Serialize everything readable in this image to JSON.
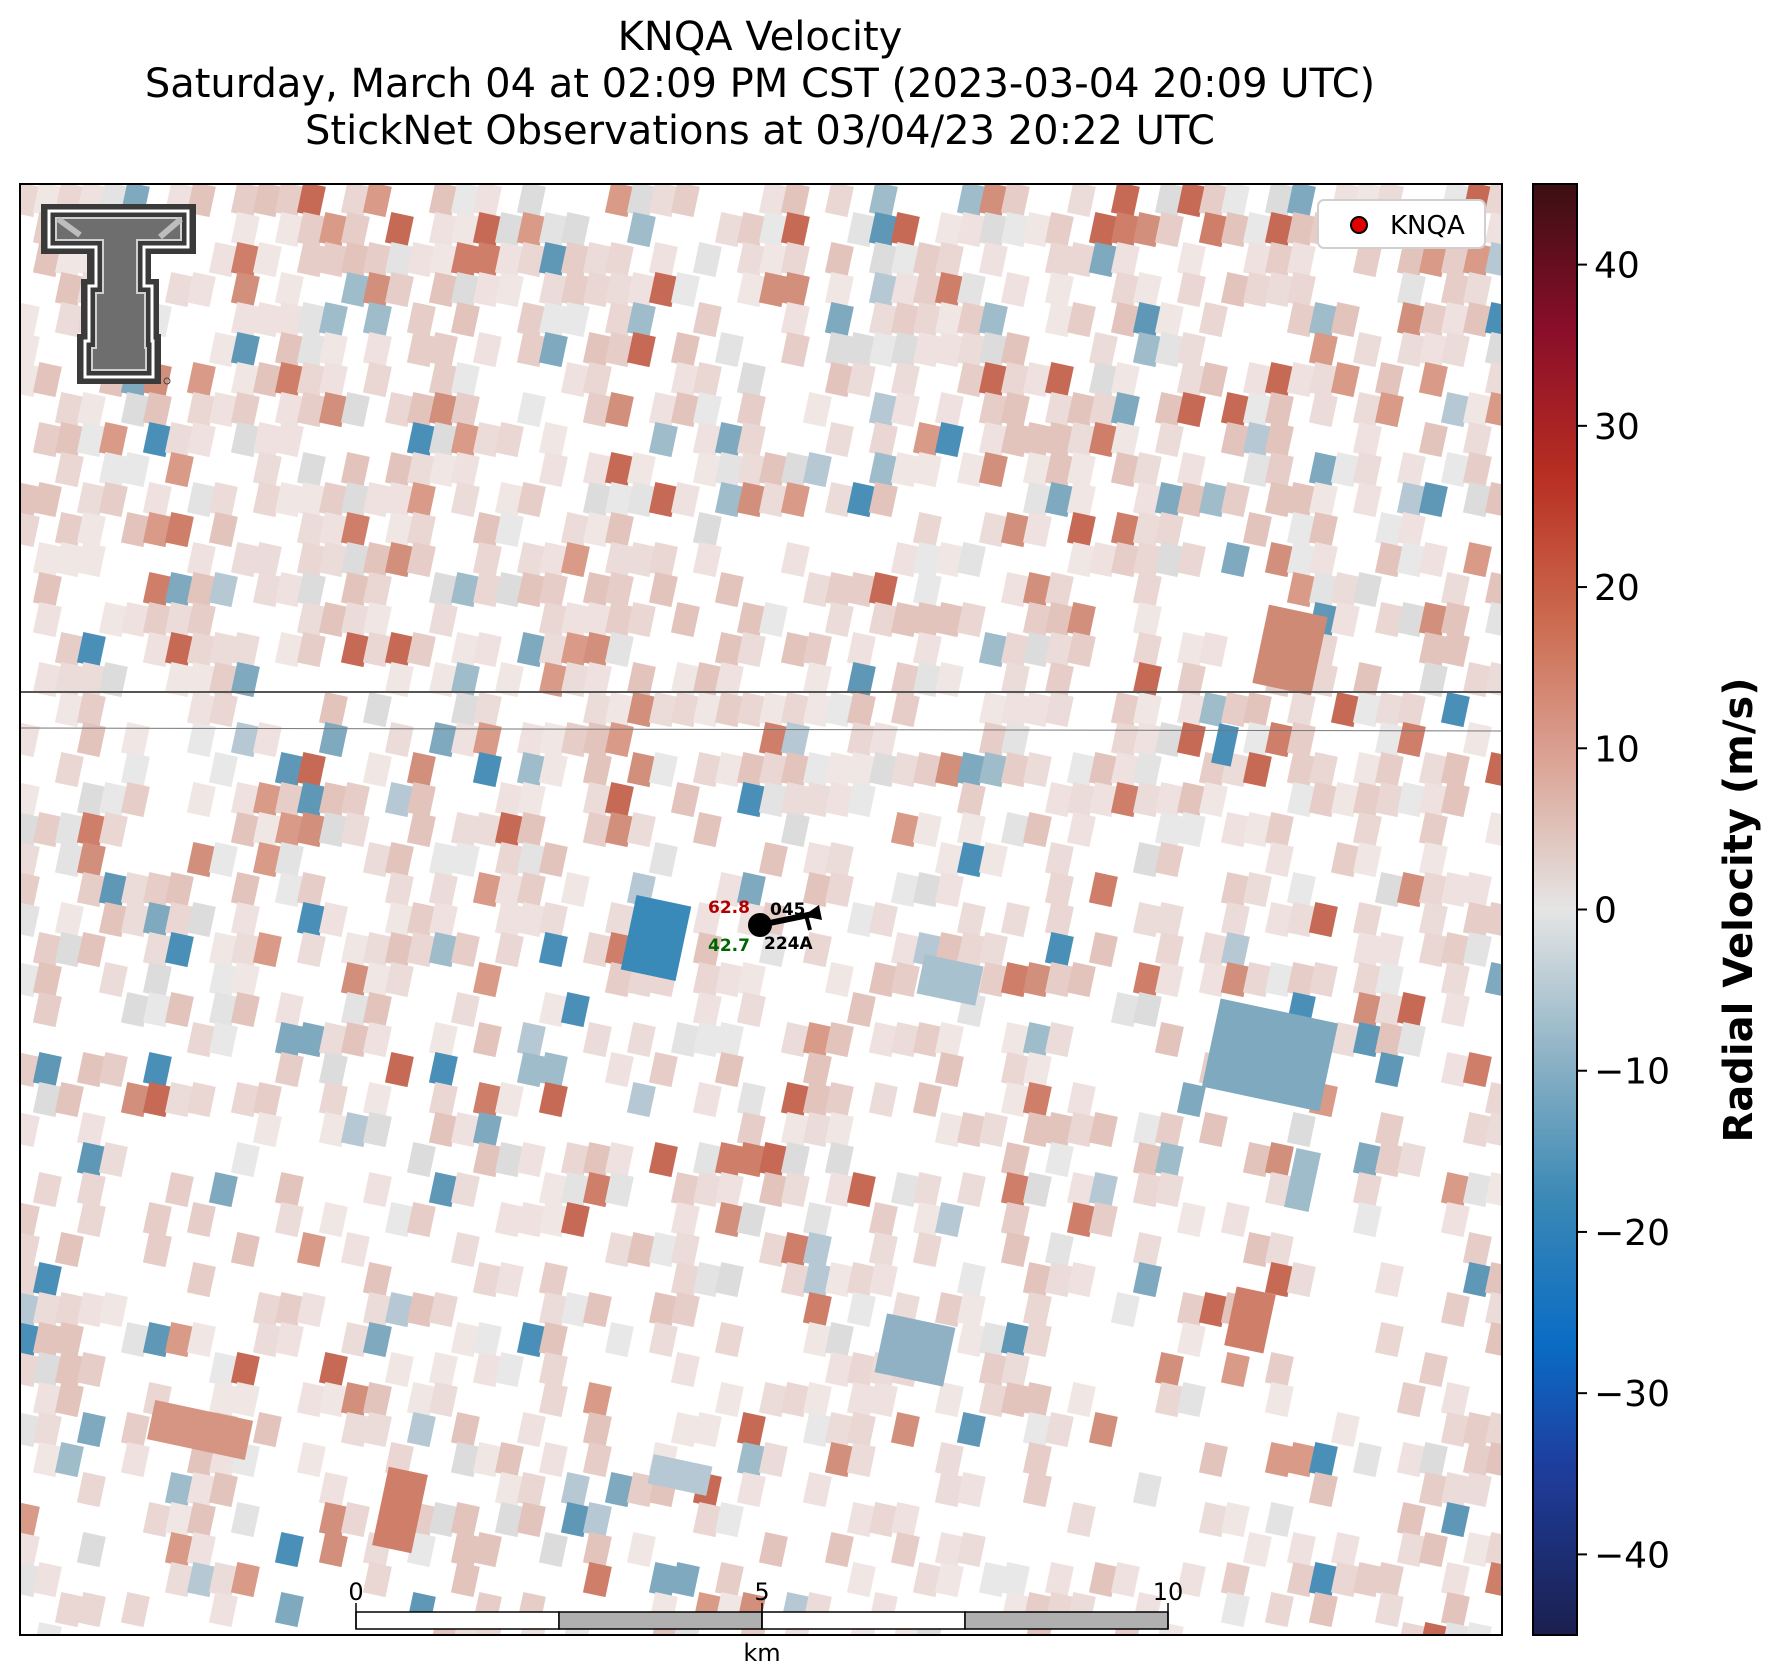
{
  "title": {
    "line1": "KNQA Velocity",
    "line2": "Saturday, March 04 at 02:09 PM CST (2023-03-04 20:09 UTC)",
    "line3": "StickNet Observations at 03/04/23 20:22 UTC"
  },
  "legend": {
    "label": "KNQA",
    "marker_color": "#e00000"
  },
  "station": {
    "temperature": "62.8",
    "dewpoint": "42.7",
    "pressure": "045",
    "id": "224A",
    "temperature_color": "#b00000",
    "dewpoint_color": "#006400"
  },
  "scalebar": {
    "ticks": [
      "0",
      "5",
      "10"
    ],
    "unit": "km"
  },
  "colorbar": {
    "label": "Radial Velocity (m/s)",
    "ticks": [
      "40",
      "30",
      "20",
      "10",
      "0",
      "−10",
      "−20",
      "−30",
      "−40"
    ],
    "range": [
      -45,
      45
    ]
  },
  "logo": {
    "icon": "texas-tech-double-t-logo"
  },
  "colors": {
    "positive": "#c0554a",
    "negative": "#3a86b4",
    "neutral": "#e6e6e6"
  }
}
